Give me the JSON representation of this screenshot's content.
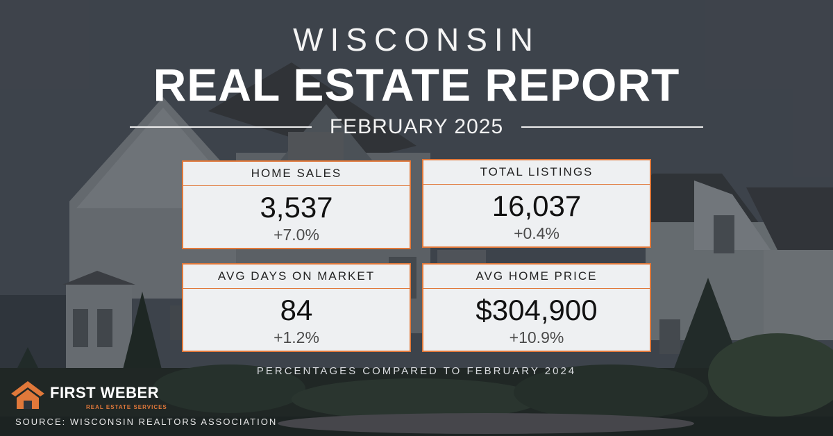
{
  "header": {
    "state": "WISCONSIN",
    "title": "REAL ESTATE REPORT",
    "period": "FEBRUARY 2025"
  },
  "stats": [
    {
      "label": "HOME SALES",
      "value": "3,537",
      "change": "+7.0%"
    },
    {
      "label": "TOTAL LISTINGS",
      "value": "16,037",
      "change": "+0.4%"
    },
    {
      "label": "AVG DAYS ON MARKET",
      "value": "84",
      "change": "+1.2%"
    },
    {
      "label": "AVG HOME PRICE",
      "value": "$304,900",
      "change": "+10.9%"
    }
  ],
  "footnote": "PERCENTAGES COMPARED TO FEBRUARY 2024",
  "brand": {
    "name": "FIRST WEBER",
    "tagline": "REAL ESTATE SERVICES",
    "logo_icon": "house-roof-icon",
    "accent_color": "#e0783a"
  },
  "source": "SOURCE: WISCONSIN REALTORS ASSOCIATION"
}
